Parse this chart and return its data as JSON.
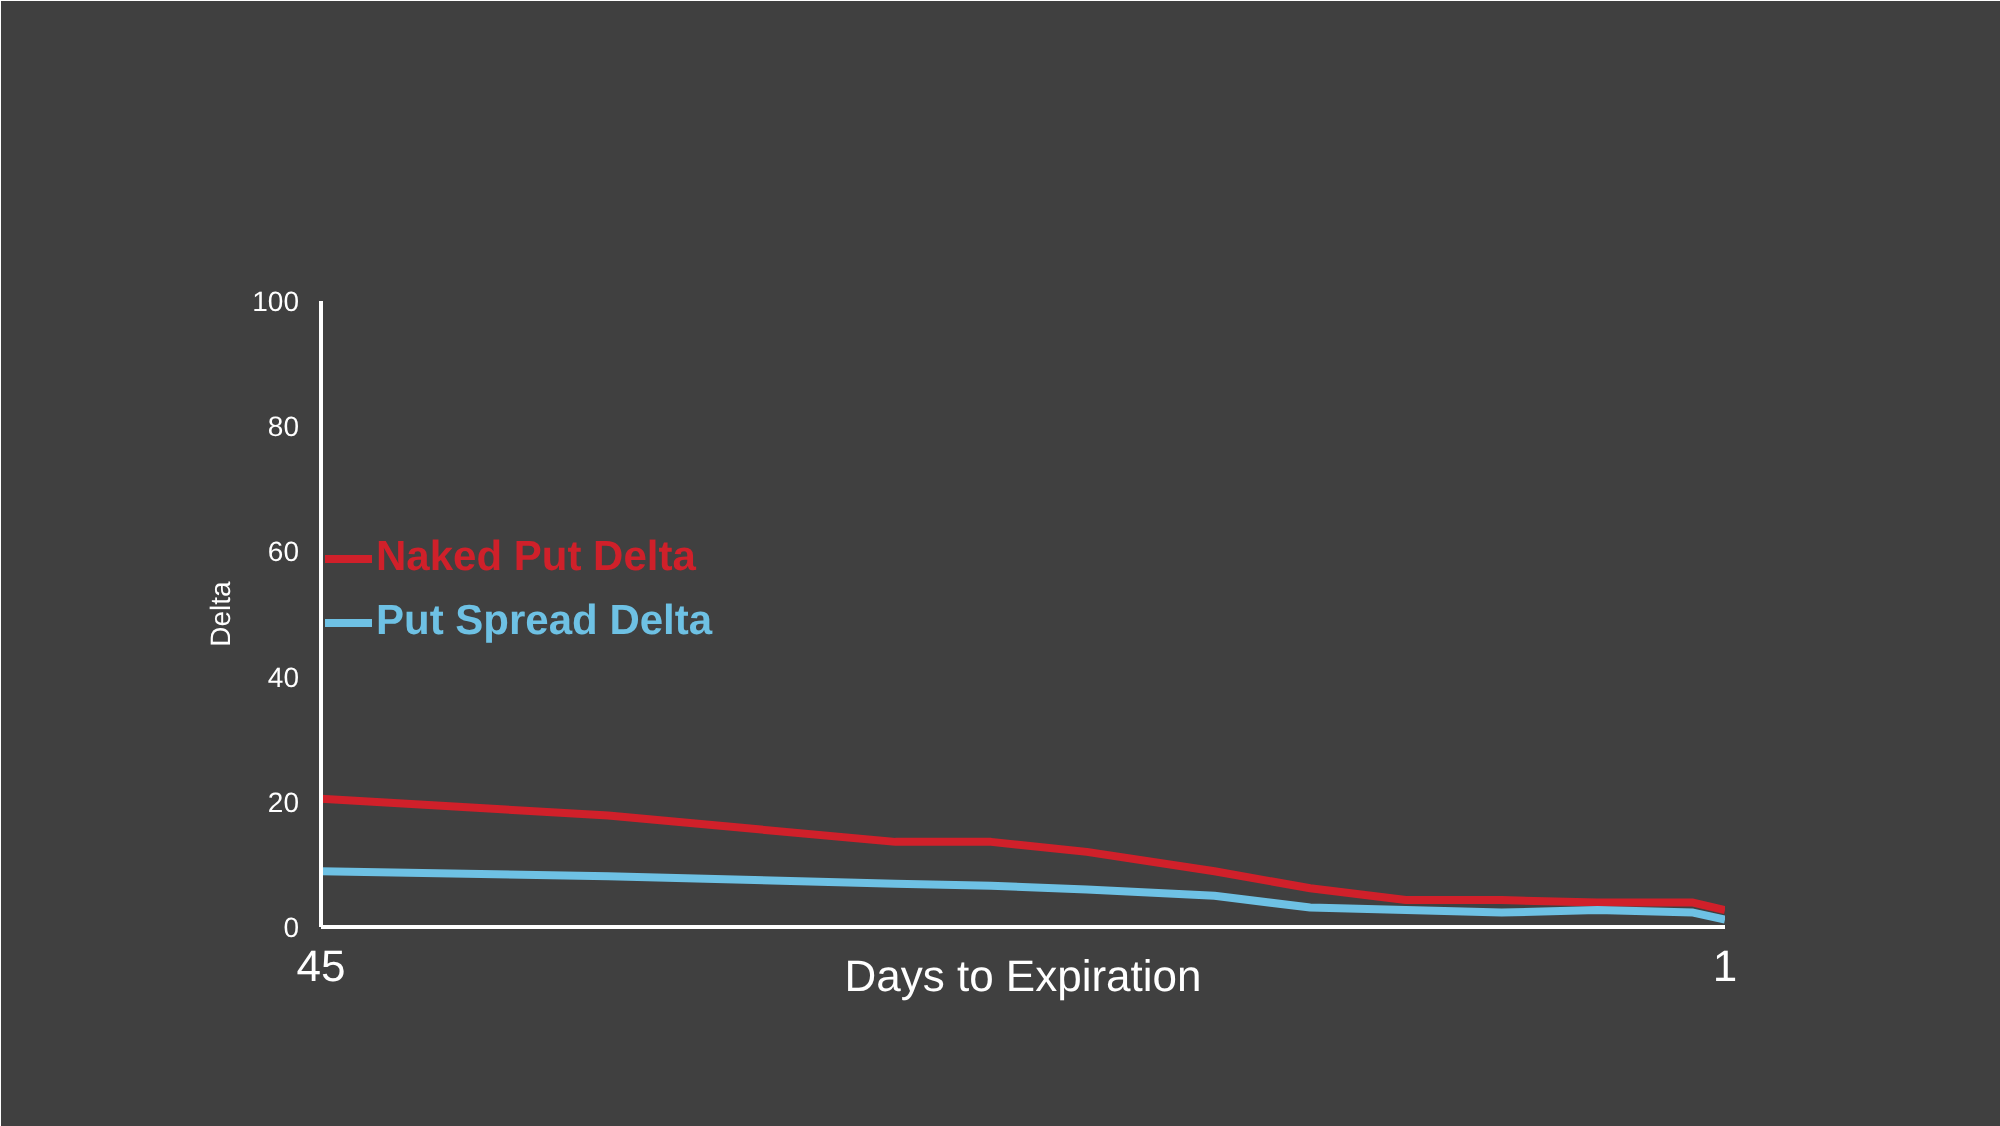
{
  "chart_data": {
    "type": "line",
    "xlabel": "Days to Expiration",
    "ylabel": "Delta",
    "x": [
      45,
      36,
      27,
      24,
      21,
      17,
      14,
      11,
      8,
      5,
      2,
      1
    ],
    "series": [
      {
        "name": "Naked Put Delta",
        "color": "#d0202a",
        "values": [
          20.5,
          17.8,
          13.6,
          13.6,
          12,
          8.9,
          6.2,
          4.3,
          4.3,
          3.9,
          3.9,
          2.7
        ]
      },
      {
        "name": "Put Spread Delta",
        "color": "#6ec1e4",
        "values": [
          8.9,
          8.1,
          6.9,
          6.6,
          6,
          5,
          3.1,
          2.7,
          2.3,
          2.7,
          2.3,
          1.2
        ]
      }
    ],
    "xlim": [
      45,
      1
    ],
    "xticks": [
      45,
      1
    ],
    "ylim": [
      0,
      100
    ],
    "yticks": [
      0,
      20,
      40,
      60,
      80,
      100
    ],
    "grid": false,
    "legend": "top left",
    "marker": "none",
    "line_style": "solid"
  }
}
